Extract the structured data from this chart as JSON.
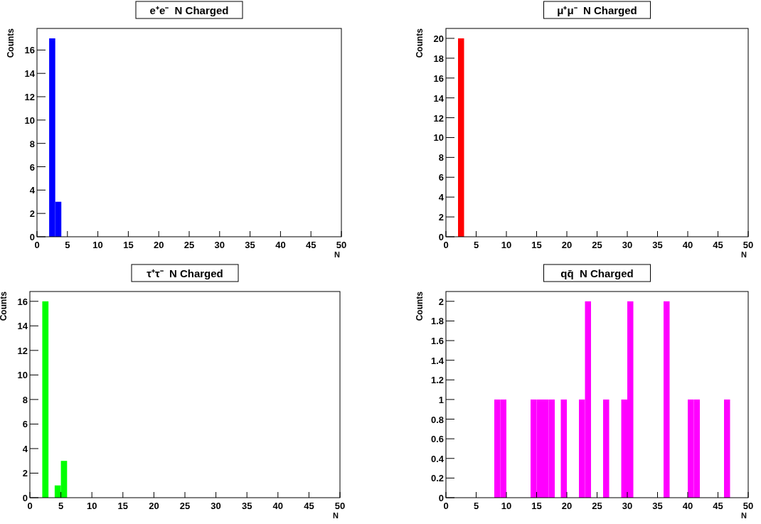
{
  "chart_data": [
    {
      "type": "histogram",
      "title": "e⁺e⁻  N Charged",
      "xlabel": "N",
      "ylabel": "Counts",
      "color": "#0000ff",
      "bins": [
        0,
        1,
        2,
        3,
        4,
        5,
        6,
        7,
        8,
        9,
        10,
        11,
        12,
        13,
        14,
        15,
        16,
        17,
        18,
        19,
        20,
        21,
        22,
        23,
        24,
        25,
        26,
        27,
        28,
        29,
        30,
        31,
        32,
        33,
        34,
        35,
        36,
        37,
        38,
        39,
        40,
        41,
        42,
        43,
        44,
        45,
        46,
        47,
        48,
        49,
        50
      ],
      "values": [
        0,
        0,
        17,
        3,
        0,
        0,
        0,
        0,
        0,
        0,
        0,
        0,
        0,
        0,
        0,
        0,
        0,
        0,
        0,
        0,
        0,
        0,
        0,
        0,
        0,
        0,
        0,
        0,
        0,
        0,
        0,
        0,
        0,
        0,
        0,
        0,
        0,
        0,
        0,
        0,
        0,
        0,
        0,
        0,
        0,
        0,
        0,
        0,
        0,
        0
      ],
      "xlim": [
        0,
        50
      ],
      "xticks": [
        0,
        5,
        10,
        15,
        20,
        25,
        30,
        35,
        40,
        45,
        50
      ],
      "ylim": [
        0,
        17.85
      ],
      "yticks": [
        0,
        2,
        4,
        6,
        8,
        10,
        12,
        14,
        16
      ]
    },
    {
      "type": "histogram",
      "title": "μ⁺μ⁻  N Charged",
      "xlabel": "N",
      "ylabel": "Counts",
      "color": "#ff0000",
      "bins": [
        0,
        1,
        2,
        3,
        4,
        5,
        6,
        7,
        8,
        9,
        10,
        11,
        12,
        13,
        14,
        15,
        16,
        17,
        18,
        19,
        20,
        21,
        22,
        23,
        24,
        25,
        26,
        27,
        28,
        29,
        30,
        31,
        32,
        33,
        34,
        35,
        36,
        37,
        38,
        39,
        40,
        41,
        42,
        43,
        44,
        45,
        46,
        47,
        48,
        49,
        50
      ],
      "values": [
        0,
        0,
        20,
        0,
        0,
        0,
        0,
        0,
        0,
        0,
        0,
        0,
        0,
        0,
        0,
        0,
        0,
        0,
        0,
        0,
        0,
        0,
        0,
        0,
        0,
        0,
        0,
        0,
        0,
        0,
        0,
        0,
        0,
        0,
        0,
        0,
        0,
        0,
        0,
        0,
        0,
        0,
        0,
        0,
        0,
        0,
        0,
        0,
        0,
        0
      ],
      "xlim": [
        0,
        50
      ],
      "xticks": [
        0,
        5,
        10,
        15,
        20,
        25,
        30,
        35,
        40,
        45,
        50
      ],
      "ylim": [
        0,
        21
      ],
      "yticks": [
        0,
        2,
        4,
        6,
        8,
        10,
        12,
        14,
        16,
        18,
        20
      ]
    },
    {
      "type": "histogram",
      "title": "τ⁺τ⁻  N Charged",
      "xlabel": "N",
      "ylabel": "Counts",
      "color": "#00ff00",
      "bins": [
        0,
        1,
        2,
        3,
        4,
        5,
        6,
        7,
        8,
        9,
        10,
        11,
        12,
        13,
        14,
        15,
        16,
        17,
        18,
        19,
        20,
        21,
        22,
        23,
        24,
        25,
        26,
        27,
        28,
        29,
        30,
        31,
        32,
        33,
        34,
        35,
        36,
        37,
        38,
        39,
        40,
        41,
        42,
        43,
        44,
        45,
        46,
        47,
        48,
        49,
        50
      ],
      "values": [
        0,
        0,
        16,
        0,
        1,
        3,
        0,
        0,
        0,
        0,
        0,
        0,
        0,
        0,
        0,
        0,
        0,
        0,
        0,
        0,
        0,
        0,
        0,
        0,
        0,
        0,
        0,
        0,
        0,
        0,
        0,
        0,
        0,
        0,
        0,
        0,
        0,
        0,
        0,
        0,
        0,
        0,
        0,
        0,
        0,
        0,
        0,
        0,
        0,
        0
      ],
      "xlim": [
        0,
        50
      ],
      "xticks": [
        0,
        5,
        10,
        15,
        20,
        25,
        30,
        35,
        40,
        45,
        50
      ],
      "ylim": [
        0,
        16.8
      ],
      "yticks": [
        0,
        2,
        4,
        6,
        8,
        10,
        12,
        14,
        16
      ]
    },
    {
      "type": "histogram",
      "title": "qq̄  N Charged",
      "xlabel": "N",
      "ylabel": "Counts",
      "color": "#ff00ff",
      "bins": [
        0,
        1,
        2,
        3,
        4,
        5,
        6,
        7,
        8,
        9,
        10,
        11,
        12,
        13,
        14,
        15,
        16,
        17,
        18,
        19,
        20,
        21,
        22,
        23,
        24,
        25,
        26,
        27,
        28,
        29,
        30,
        31,
        32,
        33,
        34,
        35,
        36,
        37,
        38,
        39,
        40,
        41,
        42,
        43,
        44,
        45,
        46,
        47,
        48,
        49,
        50
      ],
      "values": [
        0,
        0,
        0,
        0,
        0,
        0,
        0,
        0,
        1,
        1,
        0,
        0,
        0,
        0,
        1,
        1,
        1,
        1,
        0,
        1,
        0,
        0,
        1,
        2,
        0,
        0,
        1,
        0,
        0,
        1,
        2,
        0,
        0,
        0,
        0,
        0,
        2,
        0,
        0,
        0,
        1,
        1,
        0,
        0,
        0,
        0,
        1,
        0,
        0,
        0
      ],
      "xlim": [
        0,
        50
      ],
      "xticks": [
        0,
        5,
        10,
        15,
        20,
        25,
        30,
        35,
        40,
        45,
        50
      ],
      "ylim": [
        0,
        2.1
      ],
      "yticks": [
        0,
        0.2,
        0.4,
        0.6,
        0.8,
        1,
        1.2,
        1.4,
        1.6,
        1.8,
        2
      ]
    }
  ]
}
